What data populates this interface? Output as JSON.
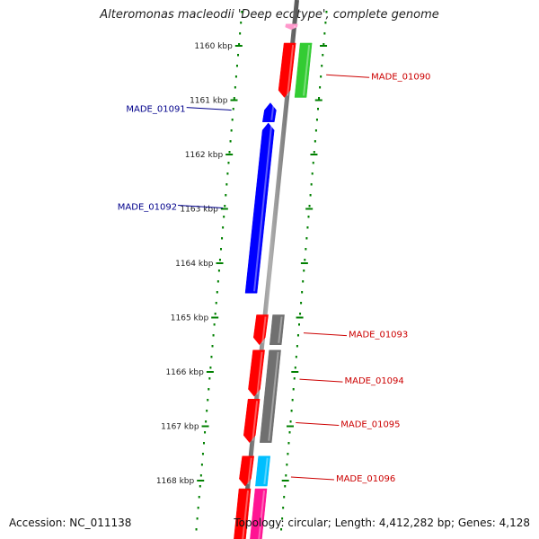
{
  "title": "Alteromonas macleodii 'Deep ecotype', complete genome",
  "footer": {
    "accession": "Accession: NC_011138",
    "topology": "Topology: circular; Length: 4,412,282 bp; Genes: 4,128"
  },
  "colors": {
    "backbone": "#808080",
    "ticks": "#008000",
    "forward_label": "#00008b",
    "reverse_label": "#cc0000",
    "red": "#ff0000",
    "green": "#33cc33",
    "blue": "#0000ff",
    "gray": "#707070",
    "cyan": "#00bfff",
    "pink": "#ff1493",
    "lightpink": "#ff99cc"
  },
  "ticks": [
    {
      "label": "1160 kbp",
      "kbp": 1160
    },
    {
      "label": "1161 kbp",
      "kbp": 1161
    },
    {
      "label": "1162 kbp",
      "kbp": 1162
    },
    {
      "label": "1163 kbp",
      "kbp": 1163
    },
    {
      "label": "1164 kbp",
      "kbp": 1164
    },
    {
      "label": "1165 kbp",
      "kbp": 1165
    },
    {
      "label": "1166 kbp",
      "kbp": 1166
    },
    {
      "label": "1167 kbp",
      "kbp": 1167
    },
    {
      "label": "1168 kbp",
      "kbp": 1168
    }
  ],
  "features": [
    {
      "strand": "reverse",
      "lane": 0,
      "start": 1159.6,
      "end": 1159.7,
      "dir": "down",
      "color": "lightpink"
    },
    {
      "strand": "reverse",
      "lane": 0,
      "start": 1159.95,
      "end": 1160.95,
      "dir": "down",
      "color": "red"
    },
    {
      "strand": "reverse",
      "lane": 1,
      "start": 1159.95,
      "end": 1160.95,
      "dir": "none",
      "color": "green"
    },
    {
      "strand": "forward",
      "lane": 0,
      "start": 1161.05,
      "end": 1161.4,
      "dir": "up",
      "color": "blue"
    },
    {
      "strand": "forward",
      "lane": 0,
      "start": 1161.42,
      "end": 1164.55,
      "dir": "up",
      "color": "blue"
    },
    {
      "strand": "reverse",
      "lane": 0,
      "start": 1164.95,
      "end": 1165.5,
      "dir": "down",
      "color": "red"
    },
    {
      "strand": "reverse",
      "lane": 1,
      "start": 1164.95,
      "end": 1165.5,
      "dir": "none",
      "color": "gray"
    },
    {
      "strand": "reverse",
      "lane": 0,
      "start": 1165.6,
      "end": 1166.45,
      "dir": "down",
      "color": "red"
    },
    {
      "strand": "reverse",
      "lane": 1,
      "start": 1165.6,
      "end": 1167.3,
      "dir": "none",
      "color": "gray"
    },
    {
      "strand": "reverse",
      "lane": 0,
      "start": 1166.5,
      "end": 1167.3,
      "dir": "down",
      "color": "red"
    },
    {
      "strand": "reverse",
      "lane": 0,
      "start": 1167.55,
      "end": 1168.1,
      "dir": "down",
      "color": "red"
    },
    {
      "strand": "reverse",
      "lane": 1,
      "start": 1167.55,
      "end": 1168.1,
      "dir": "none",
      "color": "cyan"
    },
    {
      "strand": "reverse",
      "lane": 0,
      "start": 1168.15,
      "end": 1169.2,
      "dir": "none",
      "color": "red"
    },
    {
      "strand": "reverse",
      "lane": 1,
      "start": 1168.15,
      "end": 1169.2,
      "dir": "none",
      "color": "pink"
    }
  ],
  "labels": [
    {
      "text": "MADE_01090",
      "side": "right",
      "kbp": 1160.55,
      "color": "reverse_label"
    },
    {
      "text": "MADE_01091",
      "side": "left",
      "kbp": 1161.15,
      "color": "forward_label"
    },
    {
      "text": "MADE_01092",
      "side": "left",
      "kbp": 1162.95,
      "color": "forward_label"
    },
    {
      "text": "MADE_01093",
      "side": "right",
      "kbp": 1165.3,
      "color": "reverse_label"
    },
    {
      "text": "MADE_01094",
      "side": "right",
      "kbp": 1166.15,
      "color": "reverse_label"
    },
    {
      "text": "MADE_01095",
      "side": "right",
      "kbp": 1166.95,
      "color": "reverse_label"
    },
    {
      "text": "MADE_01096",
      "side": "right",
      "kbp": 1167.95,
      "color": "reverse_label"
    }
  ]
}
